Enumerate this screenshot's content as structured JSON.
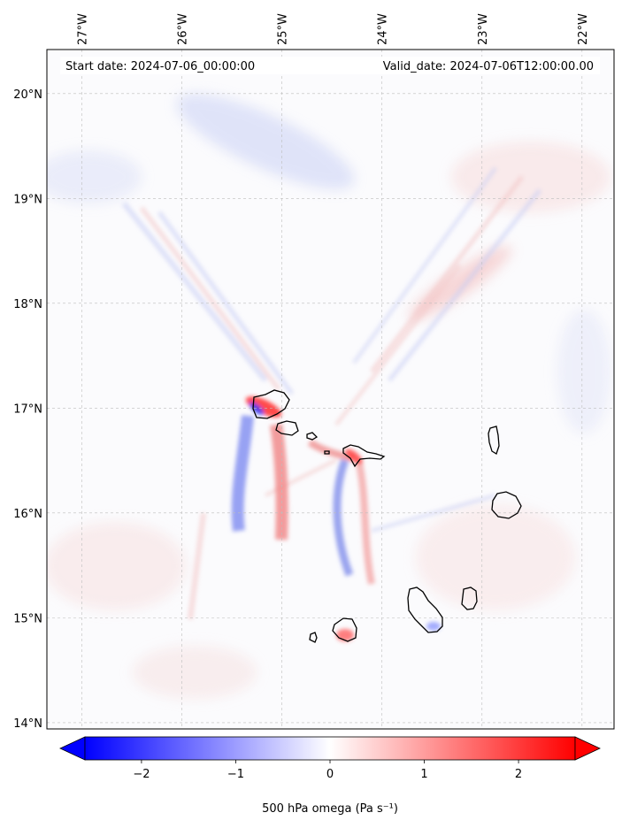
{
  "header": {
    "start_label": "Start date: 2024-07-06_00:00:00",
    "valid_label": "Valid_date: 2024-07-06T12:00:00.00"
  },
  "map": {
    "extent": {
      "lon_min": -27.35,
      "lon_max": -21.68,
      "lat_min": 13.94,
      "lat_max": 20.42
    },
    "lon_ticks": [
      {
        "value": -27,
        "label": "27°W"
      },
      {
        "value": -26,
        "label": "26°W"
      },
      {
        "value": -25,
        "label": "25°W"
      },
      {
        "value": -24,
        "label": "24°W"
      },
      {
        "value": -23,
        "label": "23°W"
      },
      {
        "value": -22,
        "label": "22°W"
      }
    ],
    "lat_ticks": [
      {
        "value": 20,
        "label": "20°N"
      },
      {
        "value": 19,
        "label": "19°N"
      },
      {
        "value": 18,
        "label": "18°N"
      },
      {
        "value": 17,
        "label": "17°N"
      },
      {
        "value": 16,
        "label": "16°N"
      },
      {
        "value": 15,
        "label": "15°N"
      },
      {
        "value": 14,
        "label": "14°N"
      }
    ],
    "field_colors": {
      "negative": "#0000ff",
      "positive": "#ff0000",
      "zero": "#ffffff"
    }
  },
  "colorbar": {
    "label": "500 hPa omega (Pa s⁻¹)",
    "range": [
      -2.6,
      2.6
    ],
    "ticks": [
      {
        "value": -2,
        "label": "−2"
      },
      {
        "value": -1,
        "label": "−1"
      },
      {
        "value": 0,
        "label": "0"
      },
      {
        "value": 1,
        "label": "1"
      },
      {
        "value": 2,
        "label": "2"
      }
    ],
    "colors": {
      "min": "#0000ff",
      "mid": "#ffffff",
      "max": "#ff0000"
    }
  }
}
